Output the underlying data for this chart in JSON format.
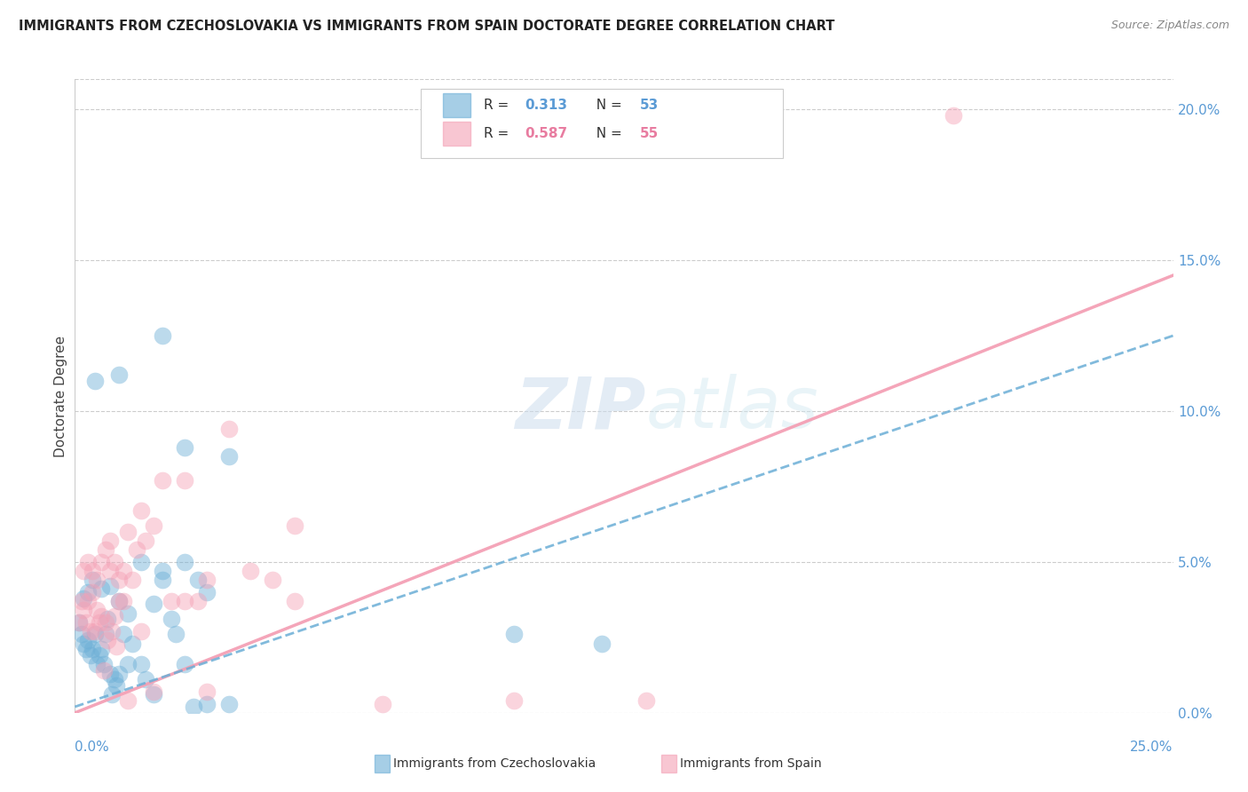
{
  "title": "IMMIGRANTS FROM CZECHOSLOVAKIA VS IMMIGRANTS FROM SPAIN DOCTORATE DEGREE CORRELATION CHART",
  "source": "Source: ZipAtlas.com",
  "ylabel": "Doctorate Degree",
  "xlim": [
    0.0,
    25.0
  ],
  "ylim": [
    0.0,
    21.0
  ],
  "yticks": [
    0.0,
    5.0,
    10.0,
    15.0,
    20.0
  ],
  "color_blue": "#6baed6",
  "color_pink": "#f4a0b5",
  "color_blue_dark": "#5b9bd5",
  "watermark_zip": "ZIP",
  "watermark_atlas": "atlas",
  "blue_scatter_x": [
    0.45,
    1.0,
    2.0,
    2.5,
    3.5,
    0.2,
    0.3,
    0.4,
    0.6,
    0.8,
    1.0,
    1.2,
    1.5,
    1.8,
    2.0,
    2.2,
    2.5,
    2.8,
    3.0,
    0.1,
    0.15,
    0.2,
    0.25,
    0.3,
    0.35,
    0.4,
    0.45,
    0.5,
    0.55,
    0.6,
    0.65,
    0.7,
    0.75,
    0.8,
    0.85,
    0.9,
    0.95,
    1.0,
    1.1,
    1.2,
    1.3,
    1.5,
    1.6,
    1.8,
    2.0,
    2.3,
    2.5,
    2.7,
    3.0,
    3.5,
    10.0,
    12.0
  ],
  "blue_scatter_y": [
    11.0,
    11.2,
    12.5,
    8.8,
    8.5,
    3.8,
    4.0,
    4.4,
    4.1,
    4.2,
    3.7,
    3.3,
    5.0,
    3.6,
    4.4,
    3.1,
    5.0,
    4.4,
    4.0,
    3.0,
    2.6,
    2.3,
    2.1,
    2.4,
    1.9,
    2.1,
    2.6,
    1.6,
    1.9,
    2.1,
    1.6,
    2.6,
    3.1,
    1.3,
    0.6,
    1.1,
    0.9,
    1.3,
    2.6,
    1.6,
    2.3,
    1.6,
    1.1,
    0.6,
    4.7,
    2.6,
    1.6,
    0.2,
    0.3,
    0.3,
    2.6,
    2.3
  ],
  "pink_scatter_x": [
    0.2,
    0.3,
    0.4,
    0.5,
    0.6,
    0.7,
    0.8,
    0.9,
    1.0,
    1.1,
    1.2,
    1.3,
    1.4,
    1.5,
    1.6,
    1.8,
    2.0,
    2.2,
    2.5,
    2.8,
    3.0,
    3.5,
    4.0,
    4.5,
    5.0,
    0.1,
    0.15,
    0.2,
    0.25,
    0.3,
    0.35,
    0.4,
    0.45,
    0.5,
    0.55,
    0.6,
    0.65,
    0.7,
    0.75,
    0.8,
    0.85,
    0.9,
    0.95,
    1.0,
    1.1,
    1.2,
    1.5,
    1.8,
    2.5,
    3.0,
    5.0,
    7.0,
    10.0,
    13.0,
    20.0
  ],
  "pink_scatter_y": [
    4.7,
    5.0,
    4.7,
    4.4,
    5.0,
    5.4,
    5.7,
    5.0,
    4.4,
    4.7,
    6.0,
    4.4,
    5.4,
    6.7,
    5.7,
    6.2,
    7.7,
    3.7,
    7.7,
    3.7,
    4.4,
    9.4,
    4.7,
    4.4,
    3.7,
    3.0,
    3.7,
    3.4,
    3.0,
    3.7,
    2.7,
    4.0,
    2.7,
    3.4,
    3.0,
    3.2,
    1.4,
    3.0,
    2.4,
    4.7,
    2.7,
    3.2,
    2.2,
    3.7,
    3.7,
    0.4,
    2.7,
    0.7,
    3.7,
    0.7,
    6.2,
    0.3,
    0.4,
    0.4,
    19.8
  ]
}
